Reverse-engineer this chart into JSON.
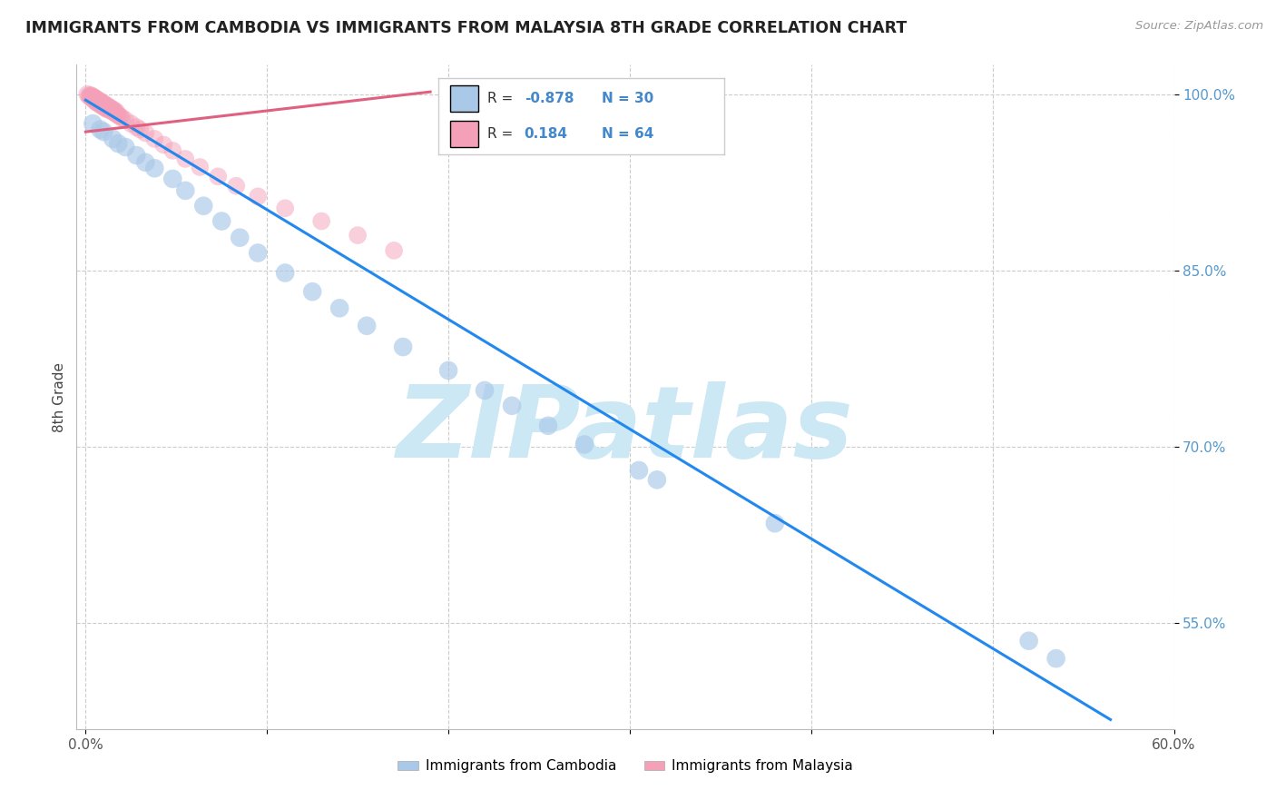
{
  "title": "IMMIGRANTS FROM CAMBODIA VS IMMIGRANTS FROM MALAYSIA 8TH GRADE CORRELATION CHART",
  "source": "Source: ZipAtlas.com",
  "ylabel": "8th Grade",
  "legend_blue_r": "-0.878",
  "legend_blue_n": "30",
  "legend_pink_r": "0.184",
  "legend_pink_n": "64",
  "blue_color": "#aac8e8",
  "blue_line_color": "#2288ee",
  "pink_color": "#f4a0b8",
  "pink_line_color": "#e06080",
  "watermark_text": "ZIPatlas",
  "watermark_color": "#cce8f4",
  "bg_color": "#ffffff",
  "grid_color": "#cccccc",
  "xlim": [
    -0.005,
    0.6
  ],
  "ylim": [
    0.46,
    1.025
  ],
  "xtick_positions": [
    0.0,
    0.1,
    0.2,
    0.3,
    0.4,
    0.5,
    0.6
  ],
  "xtick_labels": [
    "0.0%",
    "",
    "",
    "",
    "",
    "",
    "60.0%"
  ],
  "ytick_positions": [
    0.55,
    0.7,
    0.85,
    1.0
  ],
  "ytick_labels": [
    "55.0%",
    "70.0%",
    "85.0%",
    "100.0%"
  ],
  "grid_yticks": [
    0.55,
    0.7,
    0.85,
    1.0
  ],
  "blue_scatter_x": [
    0.004,
    0.008,
    0.01,
    0.015,
    0.018,
    0.022,
    0.028,
    0.033,
    0.038,
    0.048,
    0.055,
    0.065,
    0.075,
    0.085,
    0.095,
    0.11,
    0.125,
    0.14,
    0.155,
    0.175,
    0.2,
    0.22,
    0.235,
    0.255,
    0.275,
    0.305,
    0.315,
    0.38,
    0.52,
    0.535
  ],
  "blue_scatter_y": [
    0.975,
    0.97,
    0.968,
    0.962,
    0.958,
    0.955,
    0.948,
    0.942,
    0.937,
    0.928,
    0.918,
    0.905,
    0.892,
    0.878,
    0.865,
    0.848,
    0.832,
    0.818,
    0.803,
    0.785,
    0.765,
    0.748,
    0.735,
    0.718,
    0.702,
    0.68,
    0.672,
    0.635,
    0.535,
    0.52
  ],
  "pink_scatter_x": [
    0.001,
    0.002,
    0.002,
    0.003,
    0.003,
    0.004,
    0.004,
    0.005,
    0.005,
    0.005,
    0.006,
    0.006,
    0.007,
    0.007,
    0.008,
    0.008,
    0.009,
    0.009,
    0.01,
    0.01,
    0.011,
    0.011,
    0.012,
    0.012,
    0.013,
    0.014,
    0.015,
    0.016,
    0.017,
    0.018,
    0.019,
    0.02,
    0.022,
    0.025,
    0.028,
    0.03,
    0.033,
    0.038,
    0.043,
    0.048,
    0.055,
    0.063,
    0.073,
    0.083,
    0.095,
    0.11,
    0.13,
    0.15,
    0.17,
    0.003,
    0.004,
    0.005,
    0.006,
    0.007,
    0.008,
    0.009,
    0.01,
    0.011,
    0.012,
    0.013,
    0.014,
    0.015,
    0.016,
    0.017
  ],
  "pink_scatter_y": [
    1.0,
    0.999,
    0.998,
    0.998,
    0.997,
    0.997,
    0.996,
    0.996,
    0.995,
    0.994,
    0.994,
    0.993,
    0.993,
    0.992,
    0.992,
    0.991,
    0.991,
    0.99,
    0.99,
    0.989,
    0.989,
    0.988,
    0.988,
    0.987,
    0.987,
    0.986,
    0.985,
    0.984,
    0.983,
    0.982,
    0.981,
    0.98,
    0.978,
    0.975,
    0.972,
    0.97,
    0.967,
    0.962,
    0.957,
    0.952,
    0.945,
    0.938,
    0.93,
    0.922,
    0.913,
    0.903,
    0.892,
    0.88,
    0.867,
    0.999,
    0.998,
    0.997,
    0.996,
    0.995,
    0.994,
    0.993,
    0.992,
    0.991,
    0.99,
    0.989,
    0.988,
    0.987,
    0.986,
    0.985
  ],
  "blue_line_x": [
    0.0,
    0.565
  ],
  "blue_line_y": [
    0.995,
    0.468
  ],
  "pink_line_x": [
    0.0,
    0.19
  ],
  "pink_line_y": [
    0.968,
    1.002
  ]
}
